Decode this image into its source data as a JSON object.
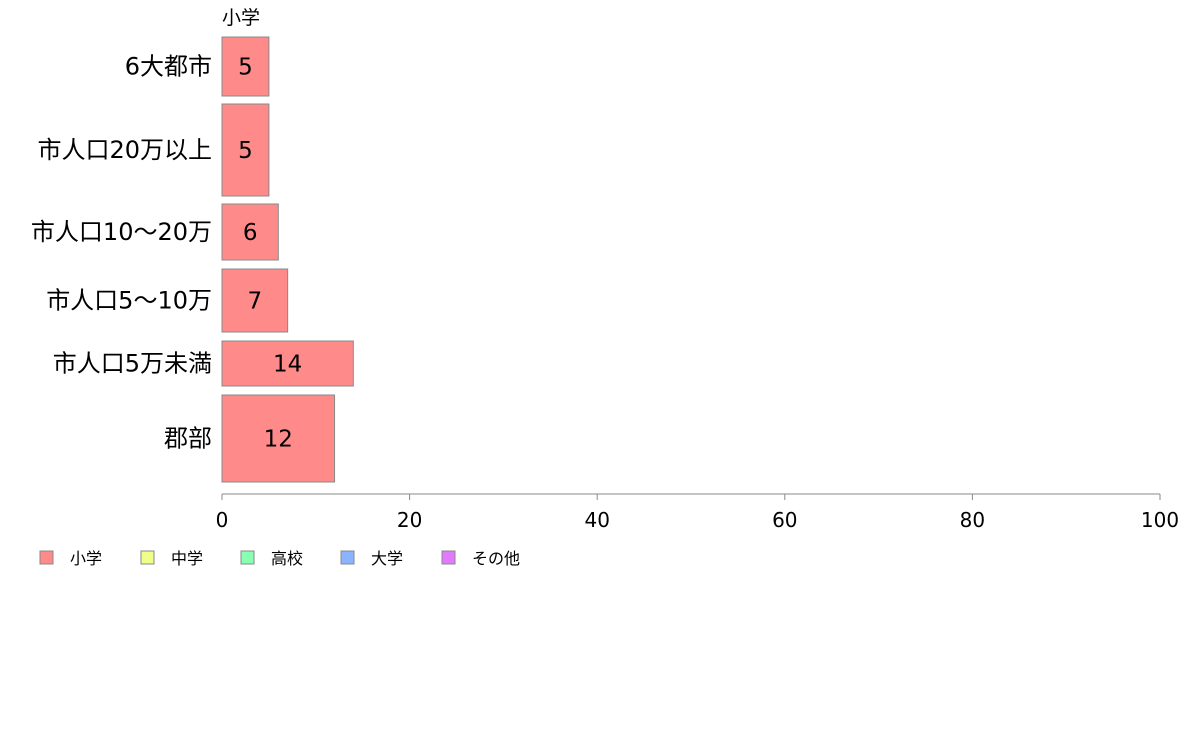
{
  "chart_data": {
    "type": "bar",
    "orientation": "horizontal",
    "stacked": true,
    "categories": [
      "6大都市",
      "市人口20万以上",
      "市人口10〜20万",
      "市人口5〜10万",
      "市人口5万未満",
      "郡部"
    ],
    "column_header": "小学",
    "series": [
      {
        "name": "小学",
        "color": "#ff8a8a",
        "values": [
          5,
          5,
          6,
          7,
          14,
          12
        ]
      },
      {
        "name": "中学",
        "color": "#f0ff8a",
        "values": [
          0,
          0,
          0,
          0,
          0,
          0
        ]
      },
      {
        "name": "高校",
        "color": "#8affb4",
        "values": [
          0,
          0,
          0,
          0,
          0,
          0
        ]
      },
      {
        "name": "大学",
        "color": "#8ab4ff",
        "values": [
          0,
          0,
          0,
          0,
          0,
          0
        ]
      },
      {
        "name": "その他",
        "color": "#e07aff",
        "values": [
          0,
          0,
          0,
          0,
          0,
          0
        ]
      }
    ],
    "data_labels": [
      "5",
      "5",
      "6",
      "7",
      "14",
      "12"
    ],
    "xlim": [
      0,
      100
    ],
    "xticks": [
      0,
      20,
      40,
      60,
      80,
      100
    ],
    "xtick_labels": [
      "0",
      "20",
      "40",
      "60",
      "80",
      "100"
    ],
    "grid": false,
    "legend_position": "bottom-left",
    "title": "",
    "xlabel": "",
    "ylabel": ""
  }
}
